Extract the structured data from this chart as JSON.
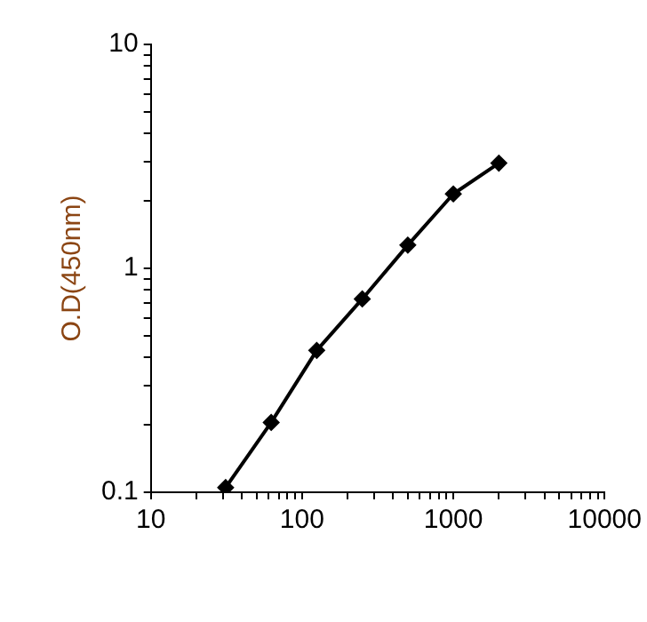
{
  "chart_data": {
    "type": "line",
    "ylabel": "O.D(450nm)",
    "log": "xy",
    "marker": "diamond",
    "line_style": "solid",
    "grid": false,
    "legend": false,
    "x": [
      31.25,
      62.5,
      125,
      250,
      500,
      1000,
      2000
    ],
    "series": [
      {
        "color": "#000000",
        "values": [
          0.105,
          0.205,
          0.43,
          0.73,
          1.27,
          2.15,
          2.95
        ]
      }
    ],
    "xlim": [
      10,
      10000
    ],
    "ylim": [
      0.1,
      10
    ],
    "xticks": [
      10,
      {
        "value": 20,
        "label": null
      },
      {
        "value": 30,
        "label": null
      },
      {
        "value": 40,
        "label": null
      },
      {
        "value": 50,
        "label": null
      },
      {
        "value": 60,
        "label": null
      },
      {
        "value": 70,
        "label": null
      },
      {
        "value": 80,
        "label": null
      },
      {
        "value": 90,
        "label": null
      },
      100,
      {
        "value": 200,
        "label": null
      },
      {
        "value": 300,
        "label": null
      },
      {
        "value": 400,
        "label": null
      },
      {
        "value": 500,
        "label": null
      },
      {
        "value": 600,
        "label": null
      },
      {
        "value": 700,
        "label": null
      },
      {
        "value": 800,
        "label": null
      },
      {
        "value": 900,
        "label": null
      },
      1000,
      {
        "value": 2000,
        "label": null
      },
      {
        "value": 3000,
        "label": null
      },
      {
        "value": 4000,
        "label": null
      },
      {
        "value": 5000,
        "label": null
      },
      {
        "value": 6000,
        "label": null
      },
      {
        "value": 7000,
        "label": null
      },
      {
        "value": 8000,
        "label": null
      },
      {
        "value": 9000,
        "label": null
      },
      10000
    ],
    "yticks": [
      0.1,
      {
        "value": 0.2,
        "label": null
      },
      {
        "value": 0.3,
        "label": null
      },
      {
        "value": 0.4,
        "label": null
      },
      {
        "value": 0.5,
        "label": null
      },
      {
        "value": 0.6,
        "label": null
      },
      {
        "value": 0.7,
        "label": null
      },
      {
        "value": 0.8,
        "label": null
      },
      {
        "value": 0.9,
        "label": null
      },
      1,
      {
        "value": 2,
        "label": null
      },
      {
        "value": 3,
        "label": null
      },
      {
        "value": 4,
        "label": null
      },
      {
        "value": 5,
        "label": null
      },
      {
        "value": 6,
        "label": null
      },
      {
        "value": 7,
        "label": null
      },
      {
        "value": 8,
        "label": null
      },
      {
        "value": 9,
        "label": null
      },
      10
    ]
  }
}
